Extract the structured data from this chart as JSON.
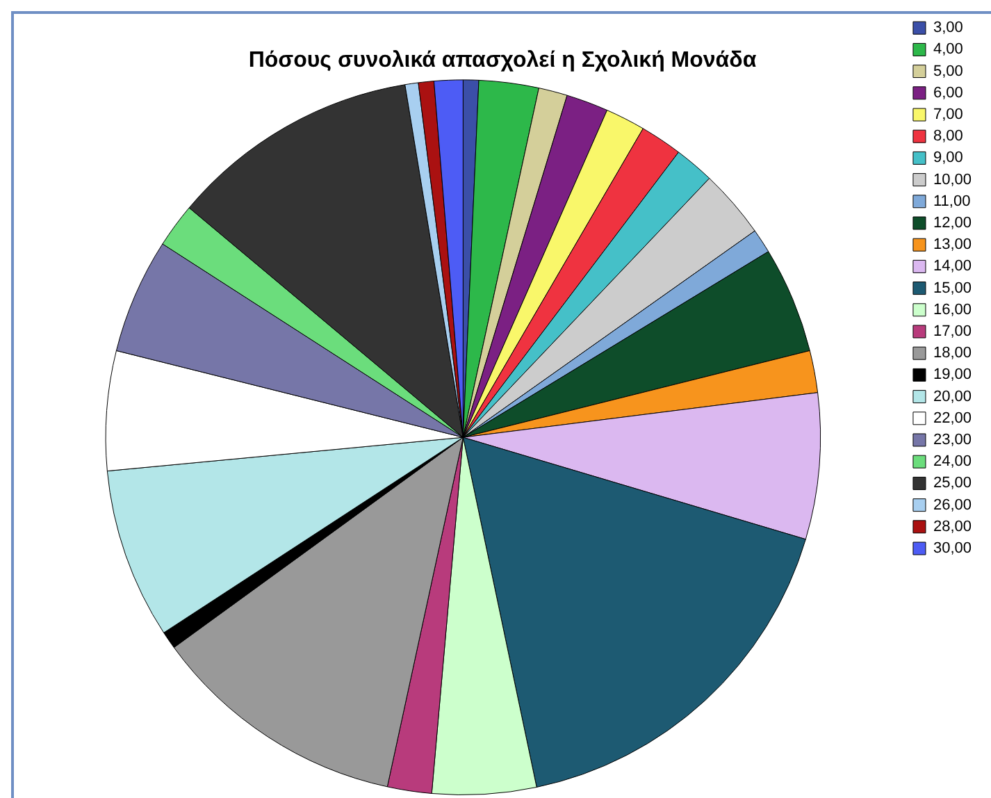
{
  "chart_data": {
    "type": "pie",
    "title": "Πόσους συνολικά απασχολεί η Σχολική Μονάδα",
    "categories": [
      "3,00",
      "4,00",
      "5,00",
      "6,00",
      "7,00",
      "8,00",
      "9,00",
      "10,00",
      "11,00",
      "12,00",
      "13,00",
      "14,00",
      "15,00",
      "16,00",
      "17,00",
      "18,00",
      "19,00",
      "20,00",
      "22,00",
      "23,00",
      "24,00",
      "25,00",
      "26,00",
      "28,00",
      "30,00"
    ],
    "values": [
      0.7,
      2.7,
      1.3,
      1.9,
      1.8,
      1.9,
      1.8,
      3.1,
      1.1,
      4.8,
      1.9,
      6.6,
      17.1,
      4.7,
      2.0,
      11.6,
      0.8,
      7.7,
      5.4,
      5.2,
      2.0,
      11.3,
      0.6,
      0.7,
      1.3
    ],
    "colors": [
      "#3b4fa8",
      "#2db84a",
      "#d4cf9a",
      "#7b2083",
      "#f9f76a",
      "#ef3340",
      "#45c0c8",
      "#cccccc",
      "#7fa9d9",
      "#0e4d2a",
      "#f7941d",
      "#dbb8f0",
      "#1d5a72",
      "#ccffcc",
      "#b83b7c",
      "#999999",
      "#000000",
      "#b3e6e8",
      "#ffffff",
      "#7676a8",
      "#6bdd7c",
      "#333333",
      "#a8cff0",
      "#aa1111",
      "#4d5cf5"
    ],
    "legend": "top right"
  }
}
